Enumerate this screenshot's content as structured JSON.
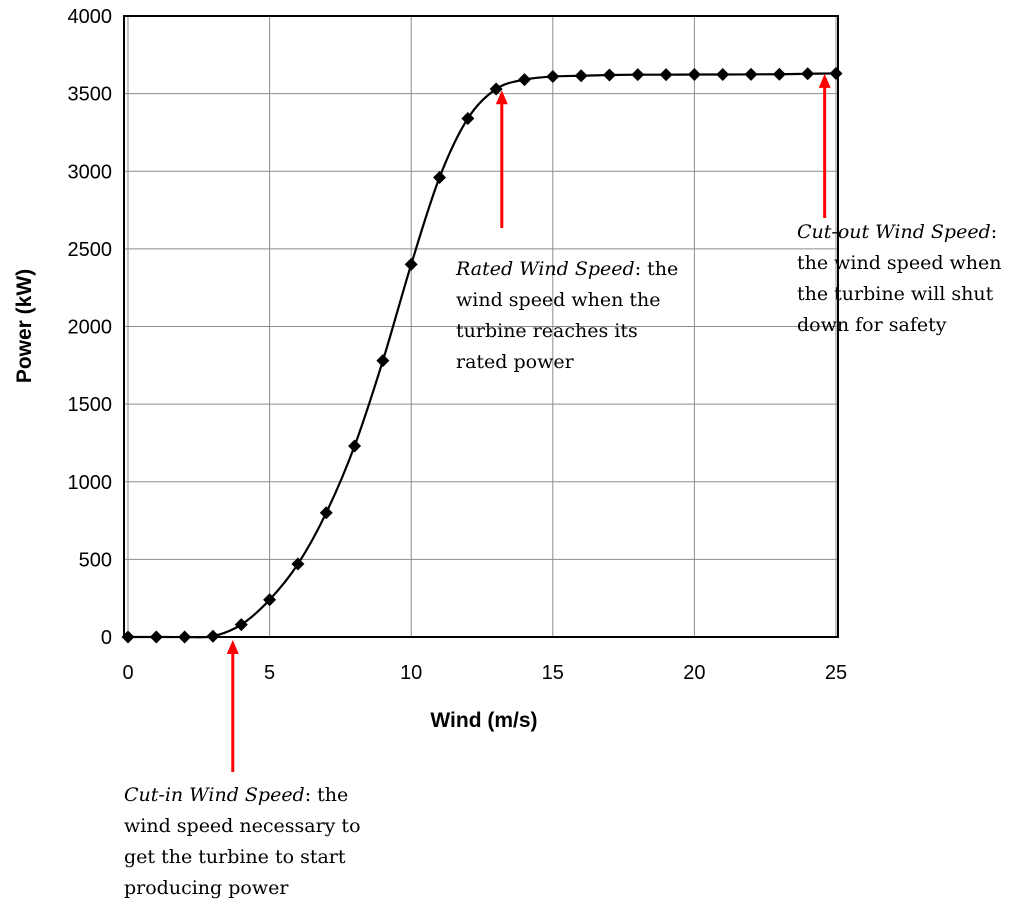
{
  "chart_data": {
    "type": "line",
    "xlabel": "Wind (m/s)",
    "ylabel": "Power (kW)",
    "xlim": [
      0,
      25
    ],
    "ylim": [
      0,
      4000
    ],
    "xticks": [
      0,
      5,
      10,
      15,
      20,
      25
    ],
    "yticks": [
      0,
      500,
      1000,
      1500,
      2000,
      2500,
      3000,
      3500,
      4000
    ],
    "grid": true,
    "legend": "none",
    "line_color": "#000000",
    "marker": "diamond",
    "arrow_color": "#ff0000",
    "x": [
      0,
      1,
      2,
      3,
      4,
      5,
      6,
      7,
      8,
      9,
      10,
      11,
      12,
      13,
      14,
      15,
      16,
      17,
      18,
      19,
      20,
      21,
      22,
      23,
      24,
      25
    ],
    "y": [
      0,
      0,
      0,
      5,
      80,
      240,
      470,
      800,
      1230,
      1780,
      2400,
      2960,
      3340,
      3530,
      3590,
      3610,
      3615,
      3620,
      3622,
      3622,
      3623,
      3623,
      3624,
      3625,
      3628,
      3630
    ],
    "annotations": [
      {
        "id": "cut-in",
        "arrow_x": 3.7,
        "term": "Cut-in Wind Speed",
        "rest_first_line": ": the",
        "lines": [
          "wind speed necessary to",
          "get the turbine to start",
          "producing power"
        ]
      },
      {
        "id": "rated",
        "arrow_x": 13.2,
        "term": "Rated Wind Speed",
        "rest_first_line": ": the",
        "lines": [
          "wind speed when the",
          "turbine reaches its",
          "rated power"
        ]
      },
      {
        "id": "cut-out",
        "arrow_x": 24.6,
        "term": "Cut-out Wind Speed",
        "rest_first_line": ":",
        "lines": [
          "the wind speed when",
          "the turbine will shut",
          "down for safety"
        ]
      }
    ]
  }
}
